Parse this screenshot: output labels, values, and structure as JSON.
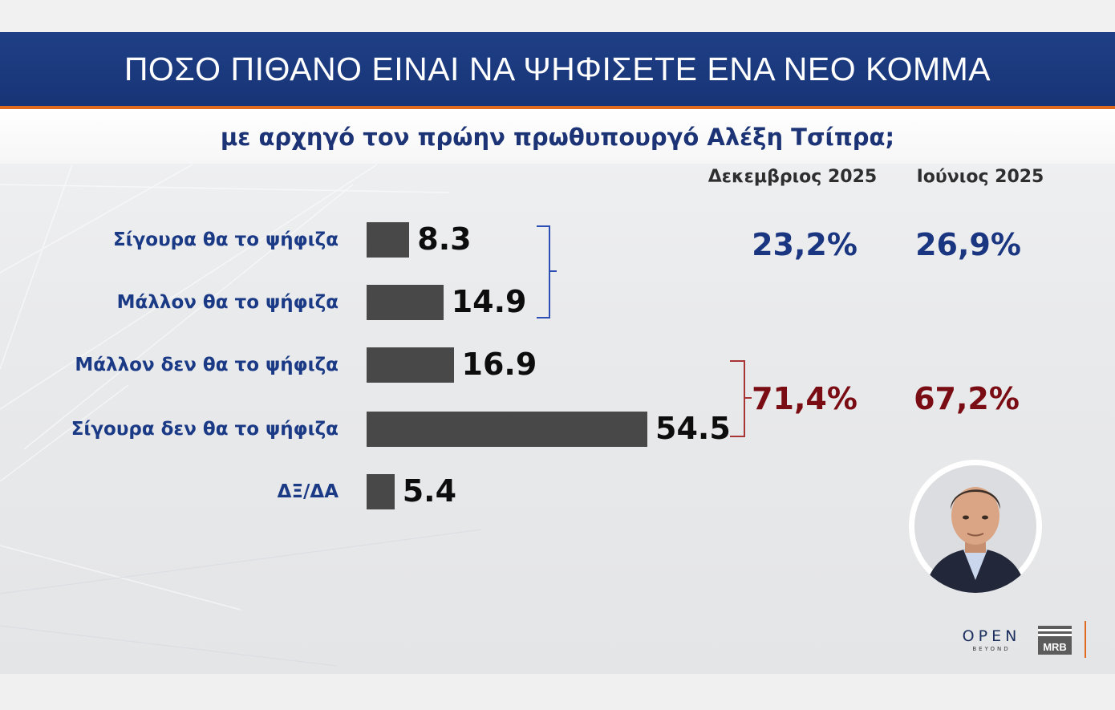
{
  "header": {
    "title": "ΠΟΣΟ ΠΙΘΑΝΟ ΕΙΝΑΙ ΝΑ ΨΗΦΙΣΕΤΕ ΕΝΑ ΝΕΟ ΚΟΜΜΑ",
    "subtitle": "με αρχηγό τον πρώην πρωθυπουργό Αλέξη Τσίπρα;"
  },
  "columns": {
    "current": "Δεκεμβριος 2025",
    "previous": "Ιούνιος 2025"
  },
  "chart_data": {
    "type": "bar",
    "orientation": "horizontal",
    "title": "ΠΟΣΟ ΠΙΘΑΝΟ ΕΙΝΑΙ ΝΑ ΨΗΦΙΣΕΤΕ ΕΝΑ ΝΕΟ ΚΟΜΜΑ",
    "subtitle": "με αρχηγό τον πρώην πρωθυπουργό Αλέξη Τσίπρα;",
    "categories": [
      "Σίγουρα θα το ψήφιζα",
      "Μάλλον θα το ψήφιζα",
      "Μάλλον δεν θα το ψήφιζα",
      "Σίγουρα δεν θα το ψήφιζα",
      "ΔΞ/ΔΑ"
    ],
    "values": [
      8.3,
      14.9,
      16.9,
      54.5,
      5.4
    ],
    "value_labels": [
      "8.3",
      "14.9",
      "16.9",
      "54.5",
      "5.4"
    ],
    "xlim": [
      0,
      60
    ],
    "bar_color": "#484848",
    "groups": [
      {
        "members": [
          0,
          1
        ],
        "color": "#1a3680",
        "Δεκεμβριος 2025": "23,2%",
        "Ιούνιος 2025": "26,9%"
      },
      {
        "members": [
          2,
          3
        ],
        "color": "#7a0d13",
        "Δεκεμβριος 2025": "71,4%",
        "Ιούνιος 2025": "67,2%"
      }
    ]
  },
  "logos": {
    "open": "OPEN",
    "open_sub": "BEYOND",
    "mrb": "MRB"
  }
}
